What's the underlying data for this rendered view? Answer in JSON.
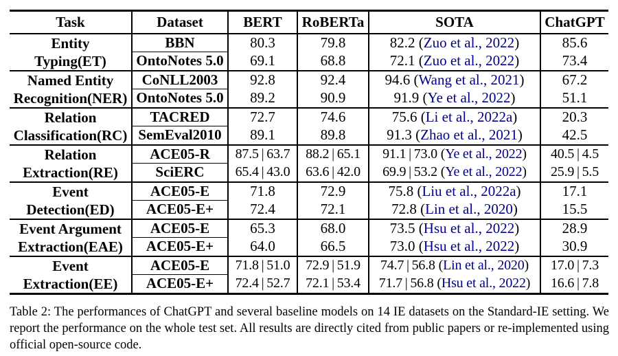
{
  "table": {
    "headers": [
      "Task",
      "Dataset",
      "BERT",
      "RoBERTa",
      "SOTA",
      "ChatGPT"
    ],
    "citation_color": "#00008B",
    "groups": [
      {
        "task_lines": [
          "Entity",
          "Typing(ET)"
        ],
        "rows": [
          {
            "dataset": "BBN",
            "bert": "80.3",
            "roberta": "79.8",
            "sota": "82.2",
            "sota_cite": "Zuo et al., 2022",
            "chatgpt": "85.6"
          },
          {
            "dataset": "OntoNotes 5.0",
            "bert": "69.1",
            "roberta": "68.8",
            "sota": "72.1",
            "sota_cite": "Zuo et al., 2022",
            "chatgpt": "73.4"
          }
        ]
      },
      {
        "task_lines": [
          "Named Entity",
          "Recognition(NER)"
        ],
        "rows": [
          {
            "dataset": "CoNLL2003",
            "bert": "92.8",
            "roberta": "92.4",
            "sota": "94.6",
            "sota_cite": "Wang et al., 2021",
            "chatgpt": "67.2"
          },
          {
            "dataset": "OntoNotes 5.0",
            "bert": "89.2",
            "roberta": "90.9",
            "sota": "91.9",
            "sota_cite": "Ye et al., 2022",
            "chatgpt": "51.1"
          }
        ]
      },
      {
        "task_lines": [
          "Relation",
          "Classification(RC)"
        ],
        "rows": [
          {
            "dataset": "TACRED",
            "bert": "72.7",
            "roberta": "74.6",
            "sota": "75.6",
            "sota_cite": "Li et al., 2022a",
            "chatgpt": "20.3"
          },
          {
            "dataset": "SemEval2010",
            "bert": "89.1",
            "roberta": "89.8",
            "sota": "91.3",
            "sota_cite": "Zhao et al., 2021",
            "chatgpt": "42.5"
          }
        ]
      },
      {
        "task_lines": [
          "Relation",
          "Extraction(RE)"
        ],
        "rows": [
          {
            "dataset": "ACE05-R",
            "bert": "87.5 | 63.7",
            "roberta": "88.2 | 65.1",
            "sota": "91.1 | 73.0",
            "sota_cite": "Ye et al., 2022",
            "chatgpt": "40.5 | 4.5"
          },
          {
            "dataset": "SciERC",
            "bert": "65.4 | 43.0",
            "roberta": "63.6 | 42.0",
            "sota": "69.9 | 53.2",
            "sota_cite": "Ye et al., 2022",
            "chatgpt": "25.9 | 5.5"
          }
        ]
      },
      {
        "task_lines": [
          "Event",
          "Detection(ED)"
        ],
        "rows": [
          {
            "dataset": "ACE05-E",
            "bert": "71.8",
            "roberta": "72.9",
            "sota": "75.8",
            "sota_cite": "Liu et al., 2022a",
            "chatgpt": "17.1"
          },
          {
            "dataset": "ACE05-E+",
            "bert": "72.4",
            "roberta": "72.1",
            "sota": "72.8",
            "sota_cite": "Lin et al., 2020",
            "chatgpt": "15.5"
          }
        ]
      },
      {
        "task_lines": [
          "Event Argument",
          "Extraction(EAE)"
        ],
        "rows": [
          {
            "dataset": "ACE05-E",
            "bert": "65.3",
            "roberta": "68.0",
            "sota": "73.5",
            "sota_cite": "Hsu et al., 2022",
            "chatgpt": "28.9"
          },
          {
            "dataset": "ACE05-E+",
            "bert": "64.0",
            "roberta": "66.5",
            "sota": "73.0",
            "sota_cite": "Hsu et al., 2022",
            "chatgpt": "30.9"
          }
        ]
      },
      {
        "task_lines": [
          "Event",
          "Extraction(EE)"
        ],
        "rows": [
          {
            "dataset": "ACE05-E",
            "bert": "71.8 | 51.0",
            "roberta": "72.9 | 51.9",
            "sota": "74.7 | 56.8",
            "sota_cite": "Lin et al., 2020",
            "chatgpt": "17.0 | 7.3"
          },
          {
            "dataset": "ACE05-E+",
            "bert": "72.4 | 52.7",
            "roberta": "72.1 | 53.4",
            "sota": "71.7 | 56.8",
            "sota_cite": "Hsu et al., 2022",
            "chatgpt": "16.6 | 7.8"
          }
        ]
      }
    ]
  },
  "caption": "Table 2: The performances of ChatGPT and several baseline models on 14 IE datasets on the Standard-IE setting. We report the performance on the whole test set. All results are directly cited from public papers or re-implemented using official open-source code."
}
